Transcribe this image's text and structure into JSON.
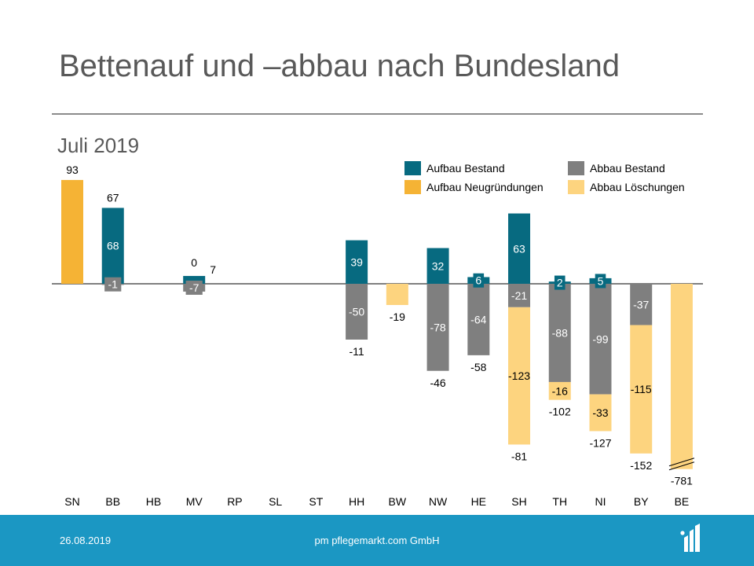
{
  "title": "Bettenauf und –abbau nach Bundesland",
  "subtitle": "Juli 2019",
  "footer": {
    "date": "26.08.2019",
    "company": "pm pflegemarkt.com GmbH"
  },
  "colors": {
    "aufbau_bestand": "#076a80",
    "aufbau_neugruendungen": "#f5b335",
    "abbau_bestand": "#7f7f7f",
    "abbau_loeschungen": "#fdd47f",
    "footer": "#1b97c3",
    "text": "#595959"
  },
  "chart_data": {
    "type": "bar",
    "stacked": true,
    "categories": [
      "SN",
      "BB",
      "HB",
      "MV",
      "RP",
      "SL",
      "ST",
      "HH",
      "BW",
      "NW",
      "HE",
      "SH",
      "TH",
      "NI",
      "BY",
      "BE"
    ],
    "series": [
      {
        "key": "aufbau_bestand",
        "name": "Aufbau Bestand",
        "values": [
          0,
          68,
          0,
          7,
          0,
          0,
          0,
          39,
          0,
          32,
          6,
          63,
          2,
          5,
          0,
          0
        ]
      },
      {
        "key": "aufbau_neugruendungen",
        "name": "Aufbau Neugründungen",
        "values": [
          93,
          0,
          0,
          0,
          0,
          0,
          0,
          0,
          0,
          0,
          0,
          0,
          0,
          0,
          0,
          0
        ]
      },
      {
        "key": "abbau_bestand",
        "name": "Abbau Bestand",
        "values": [
          0,
          -1,
          0,
          -7,
          0,
          0,
          0,
          -50,
          0,
          -78,
          -64,
          -21,
          -88,
          -99,
          -37,
          0
        ]
      },
      {
        "key": "abbau_loeschungen",
        "name": "Abbau Löschungen",
        "values": [
          0,
          0,
          0,
          0,
          0,
          0,
          0,
          0,
          -19,
          0,
          0,
          -123,
          -16,
          -33,
          -115,
          -781
        ]
      }
    ],
    "segment_labels": [
      {
        "category": "BB",
        "series": "aufbau_bestand",
        "text": "68"
      },
      {
        "category": "BB",
        "series": "abbau_bestand",
        "text": "-1"
      },
      {
        "category": "MV",
        "series": "abbau_bestand",
        "text": "-7"
      },
      {
        "category": "HH",
        "series": "aufbau_bestand",
        "text": "39"
      },
      {
        "category": "HH",
        "series": "abbau_bestand",
        "text": "-50"
      },
      {
        "category": "NW",
        "series": "aufbau_bestand",
        "text": "32"
      },
      {
        "category": "NW",
        "series": "abbau_bestand",
        "text": "-78"
      },
      {
        "category": "HE",
        "series": "aufbau_bestand",
        "text": "6"
      },
      {
        "category": "HE",
        "series": "abbau_bestand",
        "text": "-64"
      },
      {
        "category": "SH",
        "series": "aufbau_bestand",
        "text": "63"
      },
      {
        "category": "SH",
        "series": "abbau_loeschungen",
        "text": "-123"
      },
      {
        "category": "SH",
        "series": "abbau_bestand",
        "text": "-21"
      },
      {
        "category": "TH",
        "series": "aufbau_bestand",
        "text": "2"
      },
      {
        "category": "TH",
        "series": "abbau_bestand",
        "text": "-88"
      },
      {
        "category": "TH",
        "series": "abbau_loeschungen",
        "text": "-16"
      },
      {
        "category": "NI",
        "series": "aufbau_bestand",
        "text": "5"
      },
      {
        "category": "NI",
        "series": "abbau_bestand",
        "text": "-99"
      },
      {
        "category": "NI",
        "series": "abbau_loeschungen",
        "text": "-33"
      },
      {
        "category": "BY",
        "series": "abbau_loeschungen",
        "text": "-115"
      },
      {
        "category": "BY",
        "series": "abbau_bestand",
        "text": "-37"
      }
    ],
    "total_labels": [
      {
        "category": "SN",
        "text": "93"
      },
      {
        "category": "BB",
        "text": "67"
      },
      {
        "category": "MV",
        "text": "0"
      },
      {
        "category": "MV",
        "text": "7"
      },
      {
        "category": "HH",
        "text": "-11"
      },
      {
        "category": "BW",
        "text": "-19"
      },
      {
        "category": "NW",
        "text": "-46"
      },
      {
        "category": "HE",
        "text": "-58"
      },
      {
        "category": "SH",
        "text": "-81"
      },
      {
        "category": "TH",
        "text": "-102"
      },
      {
        "category": "NI",
        "text": "-127"
      },
      {
        "category": "BY",
        "text": "-152"
      },
      {
        "category": "BE",
        "text": "-781"
      }
    ],
    "axis_break": {
      "category": "BE",
      "shown_to": -166
    },
    "legend_position": "top-right",
    "grid": false
  }
}
